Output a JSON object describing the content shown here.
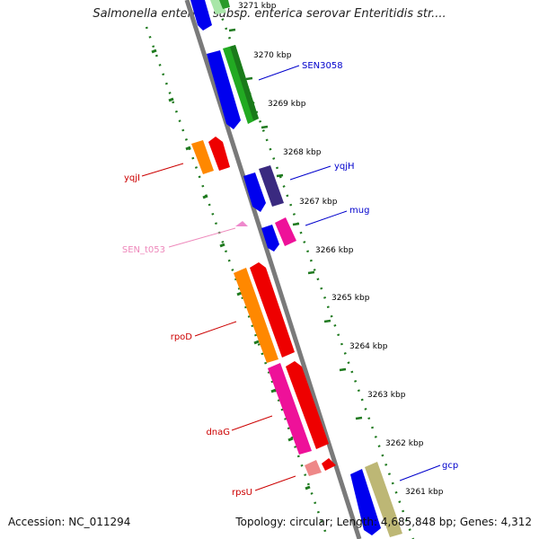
{
  "title": "Salmonella enterica subsp. enterica serovar Enteritidis str....",
  "footer": {
    "accession": "Accession: NC_011294",
    "summary": "Topology: circular; Length: 4,685,848 bp; Genes: 4,312"
  },
  "colors": {
    "backbone": "#808080",
    "ruler_dots": "#1f7a1f",
    "label_red": "#cc0000",
    "label_blue": "#0000cc",
    "label_pink": "#ee88bb",
    "tick_text": "#000000"
  },
  "ticks": [
    "3271 kbp",
    "3270 kbp",
    "3269 kbp",
    "3268 kbp",
    "3267 kbp",
    "3266 kbp",
    "3265 kbp",
    "3264 kbp",
    "3263 kbp",
    "3262 kbp",
    "3261 kbp"
  ],
  "gene_labels": [
    {
      "id": "SEN3058",
      "text": "SEN3058",
      "color": "#0000cc"
    },
    {
      "id": "yqjH",
      "text": "yqjH",
      "color": "#0000cc"
    },
    {
      "id": "mug",
      "text": "mug",
      "color": "#0000cc"
    },
    {
      "id": "gcp",
      "text": "gcp",
      "color": "#0000cc"
    },
    {
      "id": "yqjI",
      "text": "yqjI",
      "color": "#cc0000"
    },
    {
      "id": "SEN_t053",
      "text": "SEN_t053",
      "color": "#ee88bb"
    },
    {
      "id": "rpoD",
      "text": "rpoD",
      "color": "#cc0000"
    },
    {
      "id": "dnaG",
      "text": "dnaG",
      "color": "#cc0000"
    },
    {
      "id": "rpsU",
      "text": "rpsU",
      "color": "#cc0000"
    }
  ]
}
